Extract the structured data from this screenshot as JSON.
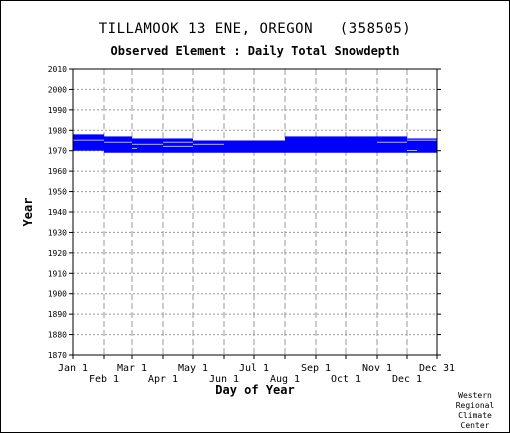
{
  "credit": [
    "Western",
    "Regional",
    "Climate",
    "Center"
  ],
  "chart_data": {
    "type": "bar",
    "title": "TILLAMOOK 13 ENE, OREGON   (358505)",
    "subtitle": "Observed Element : Daily Total Snowdepth",
    "xlabel": "Day of Year",
    "ylabel": "Year",
    "xlim": [
      1,
      365
    ],
    "ylim": [
      1870,
      2010
    ],
    "yticks": [
      1870,
      1880,
      1890,
      1900,
      1910,
      1920,
      1930,
      1940,
      1950,
      1960,
      1970,
      1980,
      1990,
      2000,
      2010
    ],
    "xticks": [
      {
        "label": "Jan 1",
        "day": 1,
        "row": 0
      },
      {
        "label": "Feb 1",
        "day": 32,
        "row": 1
      },
      {
        "label": "Mar 1",
        "day": 60,
        "row": 0
      },
      {
        "label": "Apr 1",
        "day": 91,
        "row": 1
      },
      {
        "label": "May 1",
        "day": 121,
        "row": 0
      },
      {
        "label": "Jun 1",
        "day": 152,
        "row": 1
      },
      {
        "label": "Jul 1",
        "day": 182,
        "row": 0
      },
      {
        "label": "Aug 1",
        "day": 213,
        "row": 1
      },
      {
        "label": "Sep 1",
        "day": 244,
        "row": 0
      },
      {
        "label": "Oct 1",
        "day": 274,
        "row": 1
      },
      {
        "label": "Nov 1",
        "day": 305,
        "row": 0
      },
      {
        "label": "Dec 1",
        "day": 335,
        "row": 1
      },
      {
        "label": "Dec 31",
        "day": 365,
        "row": 0
      }
    ],
    "grid": true,
    "bar_color": "#0000ff",
    "year_bands": [
      {
        "start_year": 1970,
        "end_year": 1978,
        "start_day": 1,
        "end_day": 32
      },
      {
        "start_year": 1969,
        "end_year": 1977,
        "start_day": 32,
        "end_day": 60
      },
      {
        "start_year": 1969,
        "end_year": 1976,
        "start_day": 60,
        "end_day": 91
      },
      {
        "start_year": 1969,
        "end_year": 1976,
        "start_day": 91,
        "end_day": 121
      },
      {
        "start_year": 1969,
        "end_year": 1975,
        "start_day": 121,
        "end_day": 152
      },
      {
        "start_year": 1969,
        "end_year": 1975,
        "start_day": 152,
        "end_day": 182
      },
      {
        "start_year": 1969,
        "end_year": 1975,
        "start_day": 182,
        "end_day": 213
      },
      {
        "start_year": 1969,
        "end_year": 1977,
        "start_day": 213,
        "end_day": 244
      },
      {
        "start_year": 1969,
        "end_year": 1977,
        "start_day": 244,
        "end_day": 274
      },
      {
        "start_year": 1969,
        "end_year": 1977,
        "start_day": 274,
        "end_day": 305
      },
      {
        "start_year": 1969,
        "end_year": 1977,
        "start_day": 305,
        "end_day": 335
      },
      {
        "start_year": 1969,
        "end_year": 1976,
        "start_day": 335,
        "end_day": 365
      }
    ],
    "missing_gaps": [
      {
        "year": 1975,
        "start_day": 1,
        "end_day": 32
      },
      {
        "year": 1974,
        "start_day": 32,
        "end_day": 60
      },
      {
        "year": 1973,
        "start_day": 60,
        "end_day": 91
      },
      {
        "year": 1972,
        "start_day": 91,
        "end_day": 121
      },
      {
        "year": 1974,
        "start_day": 91,
        "end_day": 121
      },
      {
        "year": 1973,
        "start_day": 121,
        "end_day": 152
      },
      {
        "year": 1970,
        "start_day": 335,
        "end_day": 345
      },
      {
        "year": 1971,
        "start_day": 60,
        "end_day": 65
      },
      {
        "year": 1974,
        "start_day": 305,
        "end_day": 335
      },
      {
        "year": 1975,
        "start_day": 335,
        "end_day": 365
      }
    ]
  }
}
